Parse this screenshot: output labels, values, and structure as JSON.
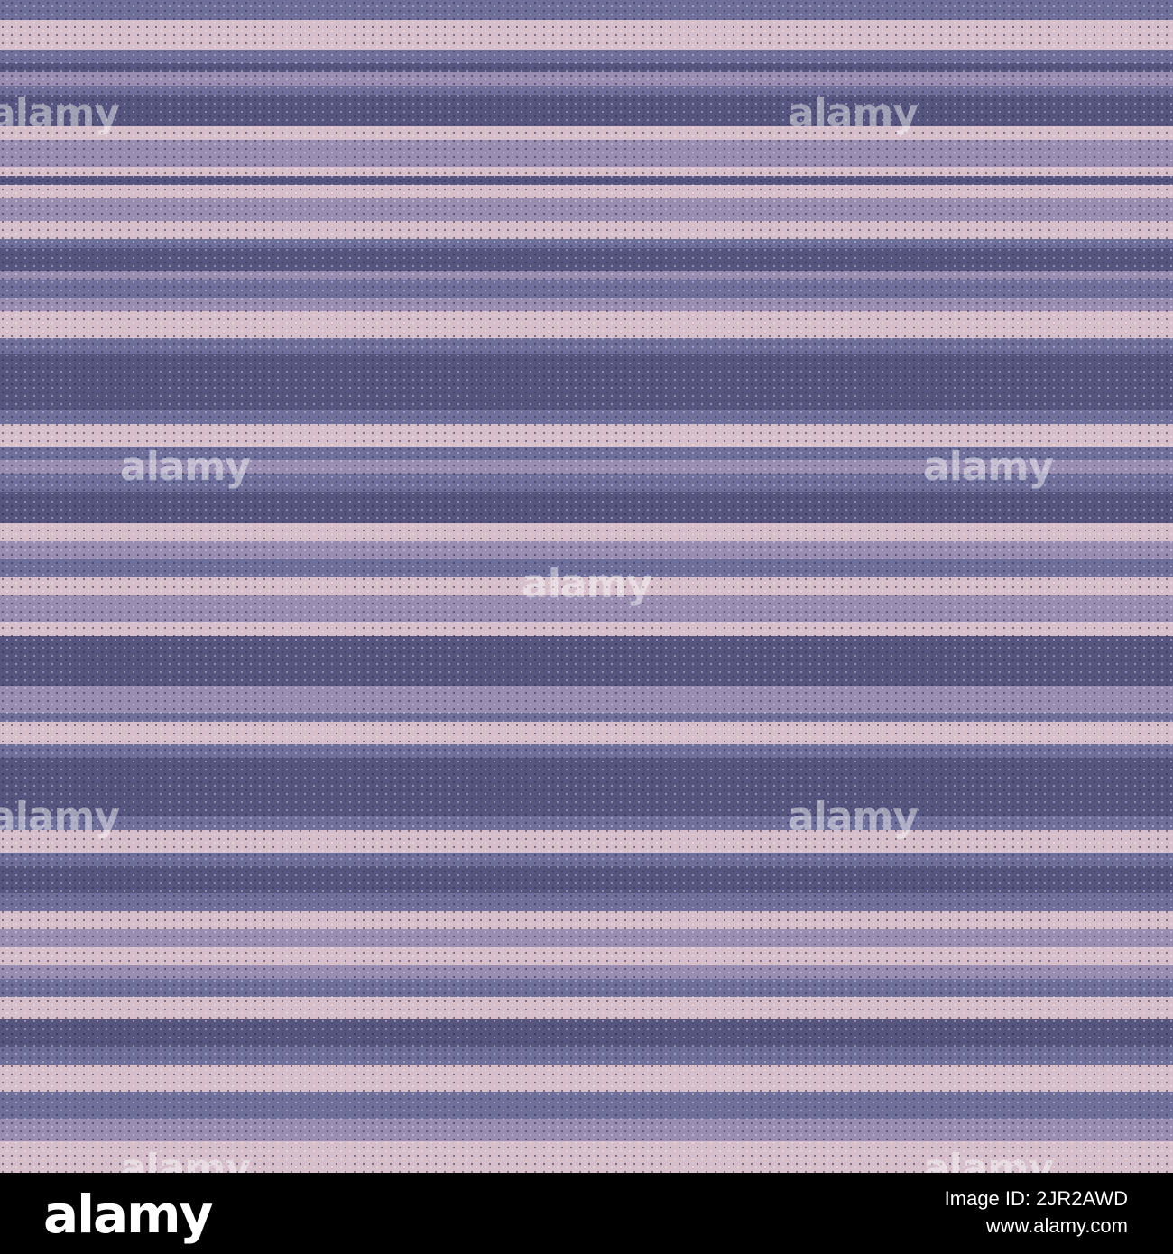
{
  "watermark": "alamy",
  "footer": {
    "logo": "alamy",
    "image_id": "Image ID: 2JR2AWD",
    "url": "www.alamy.com"
  }
}
